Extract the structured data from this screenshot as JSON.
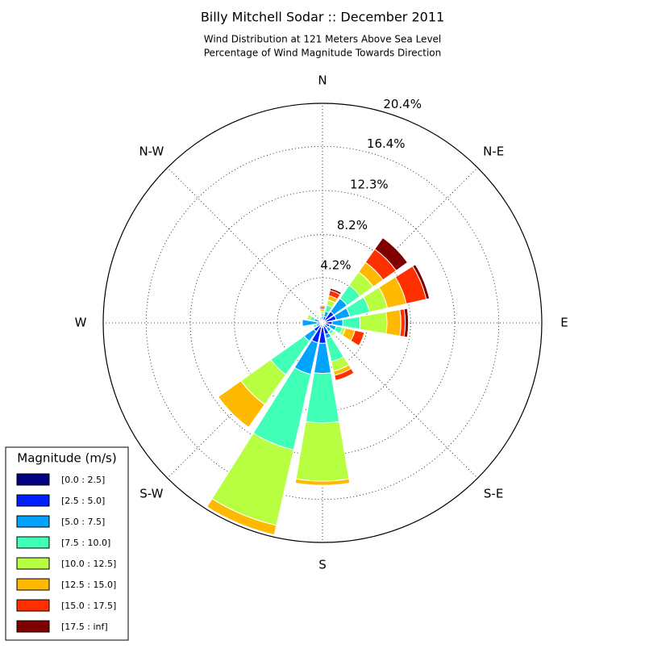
{
  "chart_data": {
    "type": "windrose",
    "title": "Billy Mitchell Sodar :: December 2011",
    "subtitle": [
      "Wind Distribution at 121 Meters Above Sea Level",
      "Percentage of Wind Magnitude Towards Direction"
    ],
    "categories": [
      "N",
      null,
      "N-E",
      null,
      "E",
      null,
      "S-E",
      null,
      "S",
      null,
      "S-W",
      null,
      "W",
      null,
      "N-W",
      null
    ],
    "ylim": [
      0,
      20.4
    ],
    "yticks": [
      {
        "value": 4.2,
        "label": "4.2%"
      },
      {
        "value": 8.2,
        "label": "8.2%"
      },
      {
        "value": 12.3,
        "label": "12.3%"
      },
      {
        "value": 16.4,
        "label": "16.4%"
      },
      {
        "value": 20.4,
        "label": "20.4%"
      }
    ],
    "grid": true,
    "legend_title": "Magnitude (m/s)",
    "legend_position": "lower left",
    "series": [
      {
        "name": "[0.0 : 2.5]",
        "color": "#000080",
        "values": [
          0.1,
          0.2,
          0.3,
          0.3,
          0.3,
          0.2,
          0.2,
          0.3,
          0.4,
          0.4,
          0.2,
          0.1,
          0.1,
          0.1,
          0.1,
          0.1
        ]
      },
      {
        "name": "[2.5 : 5.0]",
        "color": "#0020ff",
        "values": [
          0.2,
          0.4,
          1.0,
          1.0,
          0.6,
          0.5,
          0.4,
          0.8,
          1.5,
          1.5,
          0.8,
          0.2,
          0.4,
          0.2,
          0.1,
          0.2
        ]
      },
      {
        "name": "[5.0 : 7.5]",
        "color": "#00a4ff",
        "values": [
          0.3,
          0.5,
          1.5,
          1.3,
          1.0,
          0.6,
          0.4,
          0.4,
          2.8,
          3.0,
          1.1,
          0.3,
          1.4,
          0.5,
          0.2,
          0.2
        ]
      },
      {
        "name": "[7.5 : 10.0]",
        "color": "#40ffb7",
        "values": [
          0.3,
          0.6,
          1.5,
          1.9,
          1.6,
          0.6,
          0.3,
          2.2,
          4.6,
          7.2,
          3.8,
          0.3,
          0,
          0.4,
          0,
          0.1
        ]
      },
      {
        "name": "[10.0 : 12.5]",
        "color": "#b7ff40",
        "values": [
          0.2,
          0.5,
          1.5,
          1.7,
          2.5,
          0.3,
          0.2,
          0.9,
          5.4,
          7.2,
          3.4,
          0,
          0,
          0.3,
          0,
          0
        ]
      },
      {
        "name": "[12.5 : 15.0]",
        "color": "#ffb900",
        "values": [
          0.2,
          0.4,
          1.1,
          1.8,
          1.3,
          0.9,
          0,
          0.4,
          0.4,
          0.9,
          2.6,
          0,
          0,
          0,
          0,
          0
        ]
      },
      {
        "name": "[15.0 : 17.5]",
        "color": "#ff3000",
        "values": [
          0.2,
          0.5,
          1.5,
          1.9,
          0.4,
          0.9,
          0,
          0.5,
          0,
          0,
          0,
          0,
          0,
          0,
          0,
          0
        ]
      },
      {
        "name": "[17.5 : inf]",
        "color": "#800000",
        "values": [
          0.1,
          0.2,
          1.3,
          0.3,
          0.3,
          0,
          0,
          0,
          0,
          0,
          0,
          0,
          0,
          0,
          0,
          0
        ]
      }
    ]
  }
}
